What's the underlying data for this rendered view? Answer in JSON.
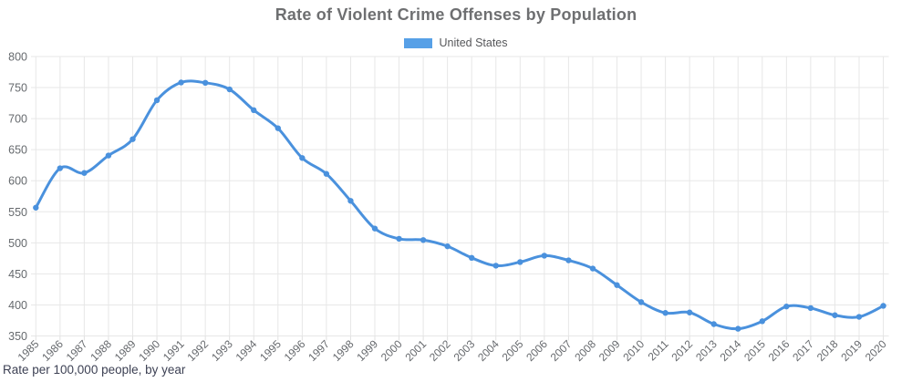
{
  "page": {
    "title": "Rate of Violent Crime Offenses by Population",
    "footnote": "Rate per 100,000 people, by year"
  },
  "legend": {
    "label": "United States",
    "color": "#57a0e7"
  },
  "colors": {
    "series_blue": "#4a91dd",
    "grid_gray": "#e7e7e7",
    "title_gray": "#6e6f71",
    "axis_text_gray": "#66696d",
    "footnote_navy": "#3d4154"
  },
  "chart_data": {
    "type": "line",
    "title": "Rate of Violent Crime Offenses by Population",
    "note": "Rate per 100,000 people, by year",
    "xlabel": "",
    "ylabel": "Rate per 100,000 people",
    "ylim": [
      350,
      800
    ],
    "ytick_step": 50,
    "grid": true,
    "legend_position": "top",
    "x": [
      1985,
      1986,
      1987,
      1988,
      1989,
      1990,
      1991,
      1992,
      1993,
      1994,
      1995,
      1996,
      1997,
      1998,
      1999,
      2000,
      2001,
      2002,
      2003,
      2004,
      2005,
      2006,
      2007,
      2008,
      2009,
      2010,
      2011,
      2012,
      2013,
      2014,
      2015,
      2016,
      2017,
      2018,
      2019,
      2020
    ],
    "series": [
      {
        "name": "United States",
        "color": "#4a91dd",
        "values": [
          556.6,
          620.1,
          612.5,
          640.6,
          666.9,
          729.6,
          758.2,
          757.7,
          747.1,
          713.6,
          684.5,
          636.6,
          611.0,
          567.6,
          523.0,
          506.5,
          504.5,
          494.4,
          475.8,
          463.2,
          469.0,
          479.3,
          471.8,
          458.6,
          431.9,
          404.5,
          387.1,
          387.8,
          369.1,
          361.6,
          373.7,
          397.5,
          394.9,
          383.4,
          380.8,
          398.5
        ]
      }
    ]
  }
}
